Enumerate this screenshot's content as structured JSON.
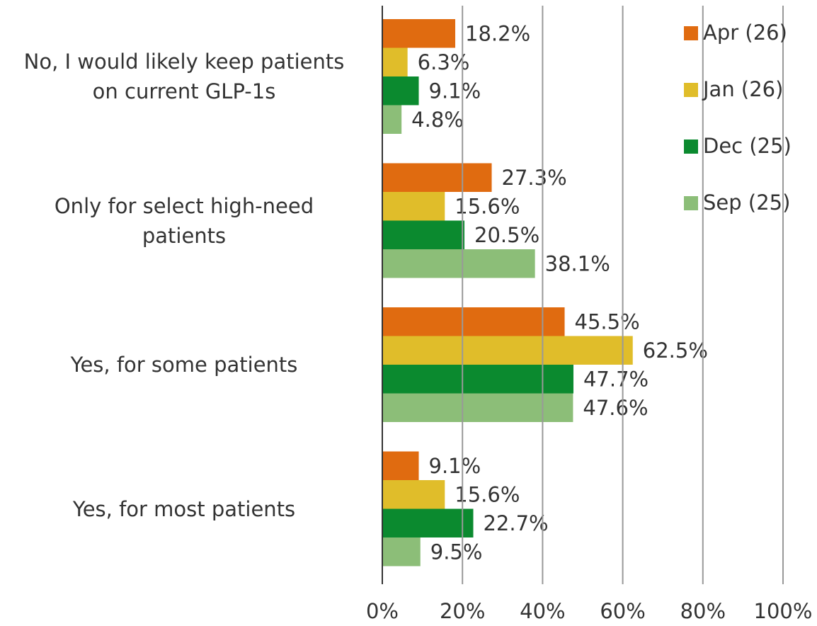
{
  "chart_data": {
    "type": "hbar",
    "categories": [
      "No, I would likely keep patients\non current GLP-1s",
      "Only for select high-need\npatients",
      "Yes, for some patients",
      "Yes, for most patients"
    ],
    "series": [
      {
        "name": "Apr (26)",
        "color": "#e06b10",
        "values": [
          18.2,
          27.3,
          45.5,
          9.1
        ],
        "value_labels": [
          "18.2%",
          "27.3%",
          "45.5%",
          "9.1%"
        ]
      },
      {
        "name": "Jan (26)",
        "color": "#e0bd2a",
        "values": [
          6.3,
          15.6,
          62.5,
          15.6
        ],
        "value_labels": [
          "6.3%",
          "15.6%",
          "62.5%",
          "15.6%"
        ]
      },
      {
        "name": "Dec (25)",
        "color": "#0b8a2f",
        "values": [
          9.1,
          20.5,
          47.7,
          22.7
        ],
        "value_labels": [
          "9.1%",
          "20.5%",
          "47.7%",
          "22.7%"
        ]
      },
      {
        "name": "Sep (25)",
        "color": "#8cbe78",
        "values": [
          4.8,
          38.1,
          47.6,
          9.5
        ],
        "value_labels": [
          "4.8%",
          "38.1%",
          "47.6%",
          "9.5%"
        ]
      }
    ],
    "xlim": [
      0,
      100
    ],
    "xticks": [
      {
        "value": 0,
        "label": "0%"
      },
      {
        "value": 20,
        "label": "20%"
      },
      {
        "value": 40,
        "label": "40%"
      },
      {
        "value": 60,
        "label": "60%"
      },
      {
        "value": 80,
        "label": "80%"
      },
      {
        "value": 100,
        "label": "100%"
      }
    ],
    "grid": true,
    "legend": "top-right"
  }
}
